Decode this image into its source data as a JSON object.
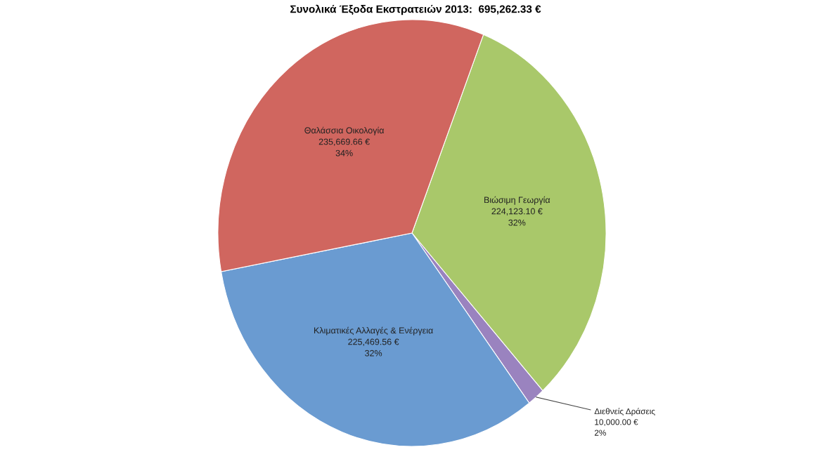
{
  "chart_data": {
    "type": "pie",
    "title": "Συνολικά Έξοδα Εκστρατειών 2013:  695,262.33 €",
    "categories": [
      "Βιώσιμη Γεωργία",
      "Διεθνείς Δράσεις",
      "Κλιματικές Αλλαγές & Ενέργεια",
      "Θαλάσσια Οικολογία"
    ],
    "values": [
      224123.1,
      10000.0,
      225469.56,
      235669.66
    ],
    "colors": [
      "#a9c86a",
      "#9a83bf",
      "#6a9bd1",
      "#d0665f"
    ],
    "value_labels": [
      "224,123.10 €\n32%",
      "10,000.00 €\n2%",
      "225,469.56 €\n32%",
      "235,669.66 €\n34%"
    ],
    "legend": false
  }
}
